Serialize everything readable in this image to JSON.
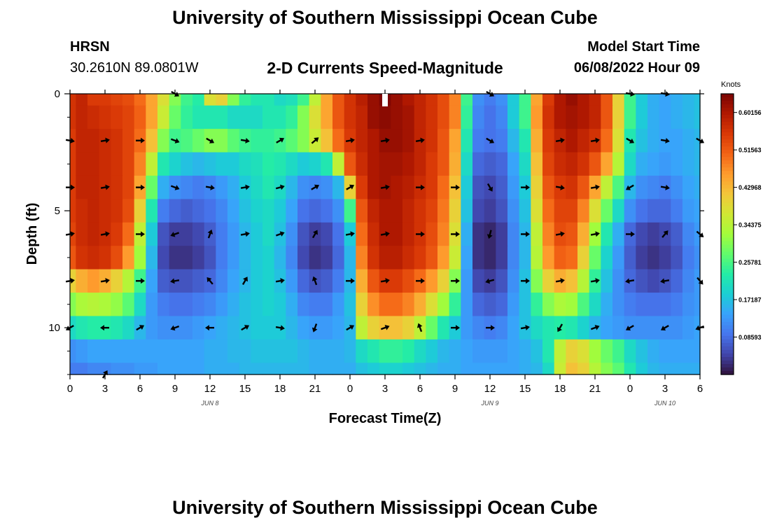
{
  "header": {
    "title": "University of Southern Mississippi Ocean Cube",
    "station": "HRSN",
    "coords": "30.2610N  89.0801W",
    "plot_title": "2-D Currents Speed-Magnitude",
    "model_start_label": "Model Start Time",
    "model_start_value": "06/08/2022 Hour 09",
    "bottom_title": "University of Southern Mississippi Ocean Cube"
  },
  "chart_data": {
    "type": "heatmap",
    "title": "2-D Currents Speed-Magnitude",
    "xlabel": "Forecast Time(Z)",
    "ylabel": "Depth (ft)",
    "xlim": [
      0,
      54
    ],
    "ylim": [
      12,
      0
    ],
    "x_tick_values": [
      0,
      3,
      6,
      9,
      12,
      15,
      18,
      21,
      24,
      27,
      30,
      33,
      36,
      39,
      42,
      45,
      48,
      51,
      54
    ],
    "x_tick_labels": [
      "0",
      "3",
      "6",
      "9",
      "12",
      "15",
      "18",
      "21",
      "0",
      "3",
      "6",
      "9",
      "12",
      "15",
      "18",
      "21",
      "0",
      "3",
      "6"
    ],
    "y_tick_values": [
      0,
      5,
      10
    ],
    "y_tick_labels": [
      "0",
      "5",
      "10"
    ],
    "date_labels": [
      {
        "hour": 12,
        "text": "JUN 8"
      },
      {
        "hour": 36,
        "text": "JUN 9"
      },
      {
        "hour": 51,
        "text": "JUN 10"
      }
    ],
    "colorbar": {
      "unit": "Knots",
      "vmin": 0.0,
      "vmax": 0.6444,
      "tick_values": [
        0.60156,
        0.51563,
        0.42968,
        0.34375,
        0.25781,
        0.17187,
        0.08593
      ],
      "tick_labels": [
        "0.60156",
        "0.51563",
        "0.42968",
        "0.34375",
        "0.25781",
        "0.17187",
        "0.08593"
      ],
      "colors": [
        "#30123b",
        "#4145ab",
        "#4675ed",
        "#39a2fc",
        "#1bcfd4",
        "#24eca6",
        "#61fc6c",
        "#a4fc3b",
        "#d1e834",
        "#f3c63a",
        "#fe9b2d",
        "#f36315",
        "#d93806",
        "#b11901",
        "#7a0403"
      ]
    },
    "hours": [
      0,
      1,
      2,
      3,
      4,
      5,
      6,
      7,
      8,
      9,
      10,
      11,
      12,
      13,
      14,
      15,
      16,
      17,
      18,
      19,
      20,
      21,
      22,
      23,
      24,
      25,
      26,
      27,
      28,
      29,
      30,
      31,
      32,
      33,
      34,
      35,
      36,
      37,
      38,
      39,
      40,
      41,
      42,
      43,
      44,
      45,
      46,
      47,
      48,
      49,
      50,
      51,
      52,
      53,
      54
    ],
    "depths": [
      0,
      1,
      2,
      3,
      4,
      5,
      6,
      7,
      8,
      9,
      10,
      11,
      12
    ],
    "speed_knots": [
      [
        0.56,
        0.58,
        0.55,
        0.55,
        0.54,
        0.53,
        0.5,
        0.45,
        0.38,
        0.3,
        0.25,
        0.23,
        0.38,
        0.4,
        0.3,
        0.24,
        0.22,
        0.22,
        0.2,
        0.21,
        0.25,
        0.35,
        0.45,
        0.52,
        0.56,
        0.59,
        0.62,
        0.64,
        0.62,
        0.6,
        0.58,
        0.56,
        0.53,
        0.48,
        0.25,
        0.12,
        0.1,
        0.12,
        0.18,
        0.25,
        0.45,
        0.55,
        0.6,
        0.62,
        0.6,
        0.58,
        0.52,
        0.4,
        0.25,
        0.18,
        0.15,
        0.14,
        0.15,
        0.16,
        0.17
      ],
      [
        0.56,
        0.58,
        0.57,
        0.56,
        0.55,
        0.54,
        0.51,
        0.45,
        0.36,
        0.28,
        0.24,
        0.22,
        0.22,
        0.22,
        0.2,
        0.2,
        0.2,
        0.22,
        0.22,
        0.24,
        0.3,
        0.38,
        0.45,
        0.52,
        0.56,
        0.58,
        0.62,
        0.63,
        0.62,
        0.61,
        0.58,
        0.56,
        0.53,
        0.48,
        0.24,
        0.11,
        0.09,
        0.11,
        0.18,
        0.25,
        0.46,
        0.56,
        0.6,
        0.61,
        0.6,
        0.58,
        0.52,
        0.4,
        0.25,
        0.18,
        0.15,
        0.14,
        0.15,
        0.16,
        0.17
      ],
      [
        0.55,
        0.58,
        0.58,
        0.57,
        0.56,
        0.54,
        0.5,
        0.42,
        0.3,
        0.25,
        0.26,
        0.28,
        0.3,
        0.3,
        0.27,
        0.25,
        0.24,
        0.24,
        0.25,
        0.27,
        0.3,
        0.36,
        0.42,
        0.5,
        0.55,
        0.58,
        0.6,
        0.62,
        0.62,
        0.61,
        0.58,
        0.56,
        0.52,
        0.45,
        0.22,
        0.1,
        0.09,
        0.1,
        0.16,
        0.22,
        0.44,
        0.55,
        0.58,
        0.6,
        0.58,
        0.56,
        0.5,
        0.38,
        0.22,
        0.17,
        0.15,
        0.14,
        0.14,
        0.15,
        0.16
      ],
      [
        0.55,
        0.58,
        0.58,
        0.57,
        0.56,
        0.54,
        0.48,
        0.35,
        0.22,
        0.19,
        0.17,
        0.16,
        0.17,
        0.18,
        0.18,
        0.2,
        0.21,
        0.23,
        0.22,
        0.2,
        0.18,
        0.19,
        0.22,
        0.35,
        0.52,
        0.57,
        0.6,
        0.61,
        0.61,
        0.6,
        0.58,
        0.55,
        0.52,
        0.44,
        0.2,
        0.08,
        0.07,
        0.08,
        0.14,
        0.2,
        0.42,
        0.54,
        0.57,
        0.58,
        0.56,
        0.52,
        0.45,
        0.34,
        0.2,
        0.15,
        0.14,
        0.13,
        0.14,
        0.15,
        0.16
      ],
      [
        0.55,
        0.58,
        0.58,
        0.57,
        0.56,
        0.54,
        0.45,
        0.28,
        0.15,
        0.12,
        0.11,
        0.1,
        0.11,
        0.13,
        0.15,
        0.18,
        0.2,
        0.22,
        0.2,
        0.16,
        0.12,
        0.11,
        0.12,
        0.16,
        0.4,
        0.55,
        0.6,
        0.61,
        0.6,
        0.59,
        0.57,
        0.55,
        0.5,
        0.42,
        0.18,
        0.06,
        0.05,
        0.07,
        0.13,
        0.18,
        0.4,
        0.52,
        0.55,
        0.56,
        0.52,
        0.45,
        0.35,
        0.26,
        0.16,
        0.12,
        0.11,
        0.1,
        0.12,
        0.14,
        0.15
      ],
      [
        0.55,
        0.57,
        0.58,
        0.57,
        0.56,
        0.53,
        0.4,
        0.22,
        0.1,
        0.08,
        0.07,
        0.08,
        0.09,
        0.11,
        0.14,
        0.17,
        0.19,
        0.2,
        0.18,
        0.14,
        0.09,
        0.08,
        0.09,
        0.12,
        0.25,
        0.52,
        0.58,
        0.6,
        0.6,
        0.58,
        0.56,
        0.54,
        0.49,
        0.4,
        0.17,
        0.05,
        0.04,
        0.06,
        0.12,
        0.17,
        0.38,
        0.5,
        0.54,
        0.54,
        0.48,
        0.38,
        0.28,
        0.2,
        0.12,
        0.09,
        0.08,
        0.08,
        0.1,
        0.13,
        0.14
      ],
      [
        0.54,
        0.57,
        0.58,
        0.57,
        0.55,
        0.5,
        0.35,
        0.18,
        0.06,
        0.04,
        0.04,
        0.05,
        0.07,
        0.1,
        0.13,
        0.16,
        0.18,
        0.2,
        0.17,
        0.12,
        0.06,
        0.04,
        0.05,
        0.09,
        0.18,
        0.5,
        0.57,
        0.6,
        0.6,
        0.58,
        0.56,
        0.53,
        0.48,
        0.38,
        0.15,
        0.03,
        0.02,
        0.04,
        0.11,
        0.16,
        0.35,
        0.48,
        0.53,
        0.52,
        0.44,
        0.32,
        0.22,
        0.15,
        0.08,
        0.05,
        0.04,
        0.05,
        0.07,
        0.11,
        0.13
      ],
      [
        0.52,
        0.56,
        0.57,
        0.56,
        0.53,
        0.46,
        0.32,
        0.16,
        0.05,
        0.03,
        0.03,
        0.04,
        0.06,
        0.1,
        0.13,
        0.16,
        0.18,
        0.19,
        0.16,
        0.11,
        0.05,
        0.03,
        0.04,
        0.08,
        0.16,
        0.48,
        0.56,
        0.59,
        0.59,
        0.57,
        0.55,
        0.52,
        0.46,
        0.36,
        0.14,
        0.03,
        0.02,
        0.04,
        0.11,
        0.16,
        0.34,
        0.46,
        0.51,
        0.5,
        0.4,
        0.28,
        0.19,
        0.13,
        0.07,
        0.04,
        0.03,
        0.04,
        0.06,
        0.1,
        0.12
      ],
      [
        0.4,
        0.44,
        0.46,
        0.44,
        0.4,
        0.34,
        0.25,
        0.14,
        0.07,
        0.06,
        0.06,
        0.07,
        0.08,
        0.11,
        0.14,
        0.16,
        0.18,
        0.19,
        0.17,
        0.13,
        0.08,
        0.06,
        0.07,
        0.1,
        0.16,
        0.44,
        0.52,
        0.55,
        0.55,
        0.53,
        0.5,
        0.46,
        0.4,
        0.3,
        0.13,
        0.05,
        0.04,
        0.06,
        0.12,
        0.17,
        0.3,
        0.4,
        0.44,
        0.42,
        0.34,
        0.24,
        0.17,
        0.12,
        0.08,
        0.06,
        0.05,
        0.06,
        0.08,
        0.11,
        0.13
      ],
      [
        0.3,
        0.33,
        0.34,
        0.33,
        0.31,
        0.27,
        0.2,
        0.13,
        0.1,
        0.09,
        0.09,
        0.1,
        0.11,
        0.13,
        0.15,
        0.17,
        0.18,
        0.19,
        0.18,
        0.15,
        0.11,
        0.1,
        0.1,
        0.13,
        0.17,
        0.4,
        0.47,
        0.5,
        0.5,
        0.48,
        0.44,
        0.38,
        0.32,
        0.24,
        0.13,
        0.08,
        0.07,
        0.08,
        0.13,
        0.17,
        0.24,
        0.3,
        0.33,
        0.32,
        0.26,
        0.2,
        0.15,
        0.12,
        0.1,
        0.09,
        0.09,
        0.09,
        0.1,
        0.12,
        0.13
      ],
      [
        0.2,
        0.22,
        0.23,
        0.23,
        0.22,
        0.2,
        0.16,
        0.13,
        0.12,
        0.12,
        0.12,
        0.13,
        0.14,
        0.15,
        0.16,
        0.17,
        0.18,
        0.18,
        0.18,
        0.16,
        0.14,
        0.13,
        0.13,
        0.14,
        0.16,
        0.35,
        0.4,
        0.42,
        0.42,
        0.4,
        0.35,
        0.28,
        0.22,
        0.18,
        0.13,
        0.11,
        0.1,
        0.11,
        0.14,
        0.17,
        0.2,
        0.22,
        0.23,
        0.22,
        0.19,
        0.16,
        0.14,
        0.13,
        0.12,
        0.12,
        0.12,
        0.12,
        0.12,
        0.13,
        0.14
      ],
      [
        0.12,
        0.13,
        0.14,
        0.14,
        0.14,
        0.14,
        0.14,
        0.14,
        0.14,
        0.14,
        0.14,
        0.14,
        0.15,
        0.15,
        0.16,
        0.16,
        0.17,
        0.17,
        0.17,
        0.17,
        0.16,
        0.15,
        0.15,
        0.15,
        0.16,
        0.2,
        0.22,
        0.24,
        0.24,
        0.23,
        0.2,
        0.18,
        0.16,
        0.15,
        0.14,
        0.13,
        0.13,
        0.13,
        0.14,
        0.15,
        0.17,
        0.22,
        0.35,
        0.4,
        0.38,
        0.32,
        0.28,
        0.25,
        0.2,
        0.17,
        0.15,
        0.14,
        0.14,
        0.14,
        0.14
      ],
      [
        0.1,
        0.1,
        0.11,
        0.11,
        0.12,
        0.12,
        0.13,
        0.13,
        0.14,
        0.14,
        0.14,
        0.14,
        0.15,
        0.15,
        0.15,
        0.16,
        0.16,
        0.16,
        0.16,
        0.16,
        0.16,
        0.15,
        0.15,
        0.15,
        0.15,
        0.17,
        0.18,
        0.19,
        0.19,
        0.18,
        0.17,
        0.16,
        0.15,
        0.15,
        0.14,
        0.14,
        0.14,
        0.14,
        0.14,
        0.15,
        0.16,
        0.2,
        0.36,
        0.42,
        0.4,
        0.34,
        0.3,
        0.27,
        0.22,
        0.18,
        0.16,
        0.15,
        0.15,
        0.15,
        0.15
      ]
    ],
    "arrow_hours": [
      0,
      3,
      6,
      9,
      12,
      15,
      18,
      21,
      24,
      27,
      30,
      33,
      36,
      39,
      42,
      45,
      48,
      51,
      54
    ],
    "arrow_depths": [
      0,
      2,
      4,
      6,
      8,
      10,
      12
    ],
    "arrow_directions_deg": [
      [
        null,
        null,
        null,
        120,
        null,
        null,
        null,
        null,
        null,
        null,
        null,
        null,
        120,
        null,
        null,
        null,
        100,
        100,
        null
      ],
      [
        100,
        80,
        90,
        110,
        120,
        100,
        60,
        50,
        80,
        80,
        80,
        null,
        120,
        null,
        80,
        80,
        120,
        100,
        120
      ],
      [
        90,
        80,
        90,
        110,
        100,
        80,
        75,
        60,
        60,
        80,
        90,
        90,
        150,
        90,
        100,
        80,
        240,
        100,
        null
      ],
      [
        80,
        80,
        90,
        250,
        20,
        80,
        70,
        30,
        80,
        80,
        90,
        90,
        195,
        90,
        80,
        80,
        90,
        40,
        130
      ],
      [
        80,
        80,
        90,
        260,
        320,
        30,
        80,
        340,
        90,
        80,
        90,
        90,
        255,
        90,
        80,
        80,
        260,
        260,
        140
      ],
      [
        240,
        270,
        60,
        250,
        270,
        60,
        100,
        200,
        60,
        70,
        340,
        90,
        90,
        80,
        210,
        70,
        240,
        240,
        250
      ],
      [
        null,
        30,
        null,
        null,
        null,
        null,
        null,
        null,
        null,
        null,
        null,
        null,
        null,
        null,
        null,
        null,
        null,
        null,
        null
      ]
    ]
  }
}
